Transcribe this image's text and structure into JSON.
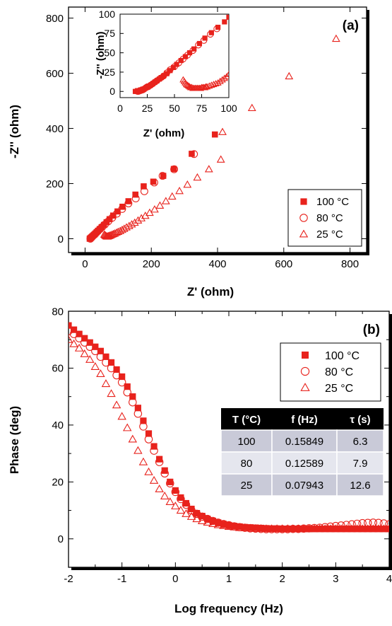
{
  "chart_data": [
    {
      "type": "scatter",
      "panel_label": "(a)",
      "xlabel": "Z' (ohm)",
      "ylabel": "-Z'' (ohm)",
      "xlim": [
        -50,
        850
      ],
      "ylim": [
        -50,
        840
      ],
      "xticks": [
        0,
        200,
        400,
        600,
        800
      ],
      "yticks": [
        0,
        200,
        400,
        600,
        800
      ],
      "legend_position": "bottom-right",
      "series": [
        {
          "name": "100 °C",
          "marker": "filled-square",
          "color": "#e8221c",
          "x": [
            14,
            16,
            18,
            20,
            22,
            25,
            28,
            31,
            35,
            39,
            44,
            50,
            57,
            65,
            74,
            85,
            98,
            113,
            131,
            152,
            177,
            206,
            236,
            268,
            322,
            392
          ],
          "y": [
            0,
            2,
            4,
            6,
            9,
            12,
            15,
            19,
            24,
            29,
            35,
            42,
            50,
            60,
            71,
            84,
            99,
            116,
            136,
            160,
            190,
            207,
            228,
            253,
            308,
            378
          ]
        },
        {
          "name": "80 °C",
          "marker": "open-circle",
          "color": "#e8221c",
          "x": [
            16,
            18,
            20,
            23,
            26,
            30,
            34,
            39,
            45,
            52,
            60,
            70,
            82,
            96,
            112,
            131,
            153,
            179,
            209,
            234,
            269,
            329
          ],
          "y": [
            0,
            3,
            6,
            9,
            13,
            17,
            22,
            28,
            35,
            43,
            52,
            63,
            76,
            91,
            108,
            128,
            146,
            172,
            204,
            228,
            252,
            307
          ]
        },
        {
          "name": "25 °C",
          "marker": "open-triangle",
          "color": "#e8221c",
          "x": [
            58,
            60,
            62,
            64,
            66,
            68,
            70,
            72,
            75,
            78,
            82,
            86,
            90,
            95,
            100,
            106,
            112,
            118,
            125,
            133,
            141,
            150,
            160,
            170,
            182,
            195,
            210,
            226,
            244,
            263,
            285,
            309,
            339,
            374,
            410,
            415,
            504,
            616,
            758
          ],
          "y": [
            15,
            13,
            11,
            9,
            8,
            8,
            9,
            10,
            11,
            13,
            15,
            17,
            19,
            22,
            25,
            28,
            32,
            36,
            41,
            46,
            52,
            58,
            66,
            74,
            83,
            94,
            106,
            120,
            136,
            153,
            173,
            196,
            222,
            252,
            287,
            387,
            474,
            589,
            725
          ]
        }
      ],
      "inset": {
        "xlabel": "Z' (ohm)",
        "ylabel": "-Z'' (ohm)",
        "xlim": [
          0,
          100
        ],
        "ylim": [
          -8,
          100
        ],
        "xticks": [
          0,
          25,
          50,
          75,
          100
        ],
        "yticks": [
          0,
          25,
          50,
          75,
          100
        ],
        "series": [
          {
            "name": "100 °C",
            "marker": "filled-square",
            "color": "#e8221c",
            "x": [
              14,
              15,
              16,
              17,
              18,
              19,
              20,
              21,
              22,
              23,
              24,
              25,
              26,
              28,
              30,
              32,
              34,
              36,
              38,
              40,
              43,
              46,
              49,
              52,
              56,
              60,
              64,
              68,
              73,
              78,
              84,
              90,
              96,
              100
            ],
            "y": [
              0,
              0,
              1,
              1,
              1,
              2,
              2,
              3,
              3,
              4,
              5,
              6,
              7,
              8,
              10,
              12,
              14,
              16,
              18,
              20,
              23,
              27,
              31,
              35,
              40,
              45,
              50,
              55,
              62,
              69,
              76,
              83,
              90,
              96
            ]
          },
          {
            "name": "80 °C",
            "marker": "open-circle",
            "color": "#e8221c",
            "x": [
              16,
              17,
              18,
              19,
              20,
              21,
              22,
              24,
              26,
              28,
              30,
              32,
              34,
              37,
              40,
              43,
              46,
              50,
              54,
              58,
              62,
              67,
              72,
              77,
              83,
              89
            ],
            "y": [
              0,
              0,
              1,
              1,
              2,
              2,
              3,
              5,
              6,
              8,
              10,
              12,
              14,
              17,
              20,
              24,
              28,
              32,
              37,
              42,
              47,
              53,
              60,
              66,
              74,
              81
            ]
          },
          {
            "name": "25 °C",
            "marker": "open-triangle",
            "color": "#e8221c",
            "x": [
              58,
              59,
              60,
              61,
              62,
              63,
              64,
              65,
              66,
              67,
              68,
              69,
              70,
              71,
              72,
              73,
              74,
              75,
              76,
              77,
              78,
              79,
              80,
              82,
              84,
              86,
              88,
              90,
              92,
              94,
              96,
              98,
              100
            ],
            "y": [
              15,
              13,
              11,
              9,
              8,
              7,
              6,
              5,
              5,
              4,
              4,
              4,
              4,
              4,
              4,
              4,
              4,
              5,
              5,
              5,
              5,
              6,
              6,
              7,
              8,
              9,
              10,
              11,
              13,
              15,
              17,
              19,
              22
            ]
          }
        ]
      }
    },
    {
      "type": "scatter",
      "panel_label": "(b)",
      "xlabel": "Log frequency (Hz)",
      "ylabel": "Phase (deg)",
      "xlim": [
        -2,
        4
      ],
      "ylim": [
        -10,
        80
      ],
      "xticks": [
        -2,
        -1,
        0,
        1,
        2,
        3,
        4
      ],
      "yticks": [
        0,
        20,
        40,
        60,
        80
      ],
      "legend_position": "top-right",
      "series": [
        {
          "name": "100 °C",
          "marker": "filled-square",
          "color": "#e8221c",
          "x": [
            -2.0,
            -1.9,
            -1.8,
            -1.7,
            -1.6,
            -1.5,
            -1.4,
            -1.3,
            -1.2,
            -1.1,
            -1.0,
            -0.9,
            -0.8,
            -0.7,
            -0.6,
            -0.5,
            -0.4,
            -0.3,
            -0.2,
            -0.1,
            0.0,
            0.1,
            0.2,
            0.3,
            0.4,
            0.5,
            0.6,
            0.7,
            0.8,
            0.9,
            1.0,
            1.1,
            1.2,
            1.3,
            1.4,
            1.5,
            1.6,
            1.7,
            1.8,
            1.9,
            2.0,
            2.1,
            2.2,
            2.3,
            2.4,
            2.5,
            2.6,
            2.7,
            2.8,
            2.9,
            3.0,
            3.1,
            3.2,
            3.3,
            3.4,
            3.5,
            3.6,
            3.7,
            3.8,
            3.9,
            4.0
          ],
          "y": [
            75,
            73.5,
            72,
            70.5,
            69,
            67.5,
            66,
            64,
            62,
            59.5,
            57,
            53.5,
            50,
            46,
            41.5,
            37,
            32.5,
            28,
            24,
            20,
            17,
            14.5,
            12.5,
            10.5,
            9,
            8,
            7,
            6.3,
            5.7,
            5.2,
            4.8,
            4.5,
            4.3,
            4.1,
            4,
            3.9,
            3.8,
            3.7,
            3.6,
            3.6,
            3.5,
            3.5,
            3.5,
            3.5,
            3.5,
            3.5,
            3.5,
            3.5,
            3.5,
            3.5,
            3.5,
            3.5,
            3.5,
            3.5,
            3.5,
            3.5,
            3.5,
            3.5,
            3.5,
            3.5,
            3.5
          ]
        },
        {
          "name": "80 °C",
          "marker": "open-circle",
          "color": "#e8221c",
          "x": [
            -2.0,
            -1.9,
            -1.8,
            -1.7,
            -1.6,
            -1.5,
            -1.4,
            -1.3,
            -1.2,
            -1.1,
            -1.0,
            -0.9,
            -0.8,
            -0.7,
            -0.6,
            -0.5,
            -0.4,
            -0.3,
            -0.2,
            -0.1,
            0.0,
            0.1,
            0.2,
            0.3,
            0.4,
            0.5,
            0.6,
            0.7,
            0.8,
            0.9,
            1.0,
            1.1,
            1.2,
            1.3,
            1.4,
            1.5,
            1.6,
            1.7,
            1.8,
            1.9,
            2.0,
            2.1,
            2.2,
            2.3,
            2.4,
            2.5,
            2.6,
            2.7,
            2.8,
            2.9,
            3.0,
            3.1,
            3.2,
            3.3,
            3.4,
            3.5,
            3.6,
            3.7,
            3.8,
            3.9,
            4.0
          ],
          "y": [
            73,
            72,
            70.5,
            69,
            67.5,
            66,
            64,
            62,
            60,
            57.5,
            55,
            51.5,
            48,
            44,
            39.5,
            35,
            31,
            27,
            23,
            19.5,
            16.5,
            14,
            12,
            10,
            8.8,
            7.8,
            7,
            6.3,
            5.7,
            5.2,
            4.8,
            4.4,
            4.1,
            3.9,
            3.7,
            3.6,
            3.5,
            3.4,
            3.4,
            3.4,
            3.4,
            3.4,
            3.5,
            3.5,
            3.6,
            3.7,
            3.8,
            3.9,
            4.1,
            4.3,
            4.5,
            4.7,
            4.9,
            5.1,
            5.3,
            5.5,
            5.6,
            5.7,
            5.6,
            5.4,
            5.1
          ]
        },
        {
          "name": "25 °C",
          "marker": "open-triangle",
          "color": "#e8221c",
          "x": [
            -2.0,
            -1.9,
            -1.8,
            -1.7,
            -1.6,
            -1.5,
            -1.4,
            -1.3,
            -1.2,
            -1.1,
            -1.0,
            -0.9,
            -0.8,
            -0.7,
            -0.6,
            -0.5,
            -0.4,
            -0.3,
            -0.2,
            -0.1,
            0.0,
            0.1,
            0.2,
            0.3,
            0.4,
            0.5,
            0.6,
            0.7,
            0.8,
            0.9,
            1.0,
            1.1,
            1.2,
            1.3,
            1.4,
            1.5,
            1.6,
            1.7,
            1.8,
            1.9,
            2.0,
            2.1,
            2.2,
            2.3,
            2.4,
            2.5,
            2.6,
            2.7,
            2.8,
            2.9,
            3.0,
            3.1,
            3.2,
            3.3,
            3.4,
            3.5,
            3.6,
            3.7,
            3.8,
            3.9,
            4.0
          ],
          "y": [
            70,
            68.5,
            67,
            65,
            63,
            60.5,
            58,
            54.5,
            51,
            47,
            43,
            39,
            35,
            31,
            27,
            23.5,
            20.5,
            17.5,
            15,
            13,
            11.5,
            10,
            8.8,
            7.8,
            7,
            6.3,
            5.8,
            5.3,
            4.9,
            4.6,
            4.3,
            4.1,
            3.9,
            3.8,
            3.7,
            3.6,
            3.6,
            3.5,
            3.5,
            3.5,
            3.5,
            3.5,
            3.5,
            3.5,
            3.5,
            3.5,
            3.5,
            3.5,
            3.5,
            3.5,
            3.5,
            3.5,
            3.5,
            3.5,
            3.5,
            3.5,
            3.5,
            3.5,
            3.5,
            3.5,
            3.5
          ]
        }
      ],
      "table": {
        "header_html_note": "",
        "columns": [
          "T (°C)",
          "f (Hz)",
          "τ (s)"
        ],
        "rows": [
          [
            "100",
            "0.15849",
            "6.3"
          ],
          [
            "80",
            "0.12589",
            "7.9"
          ],
          [
            "25",
            "0.07943",
            "12.6"
          ]
        ]
      }
    }
  ]
}
